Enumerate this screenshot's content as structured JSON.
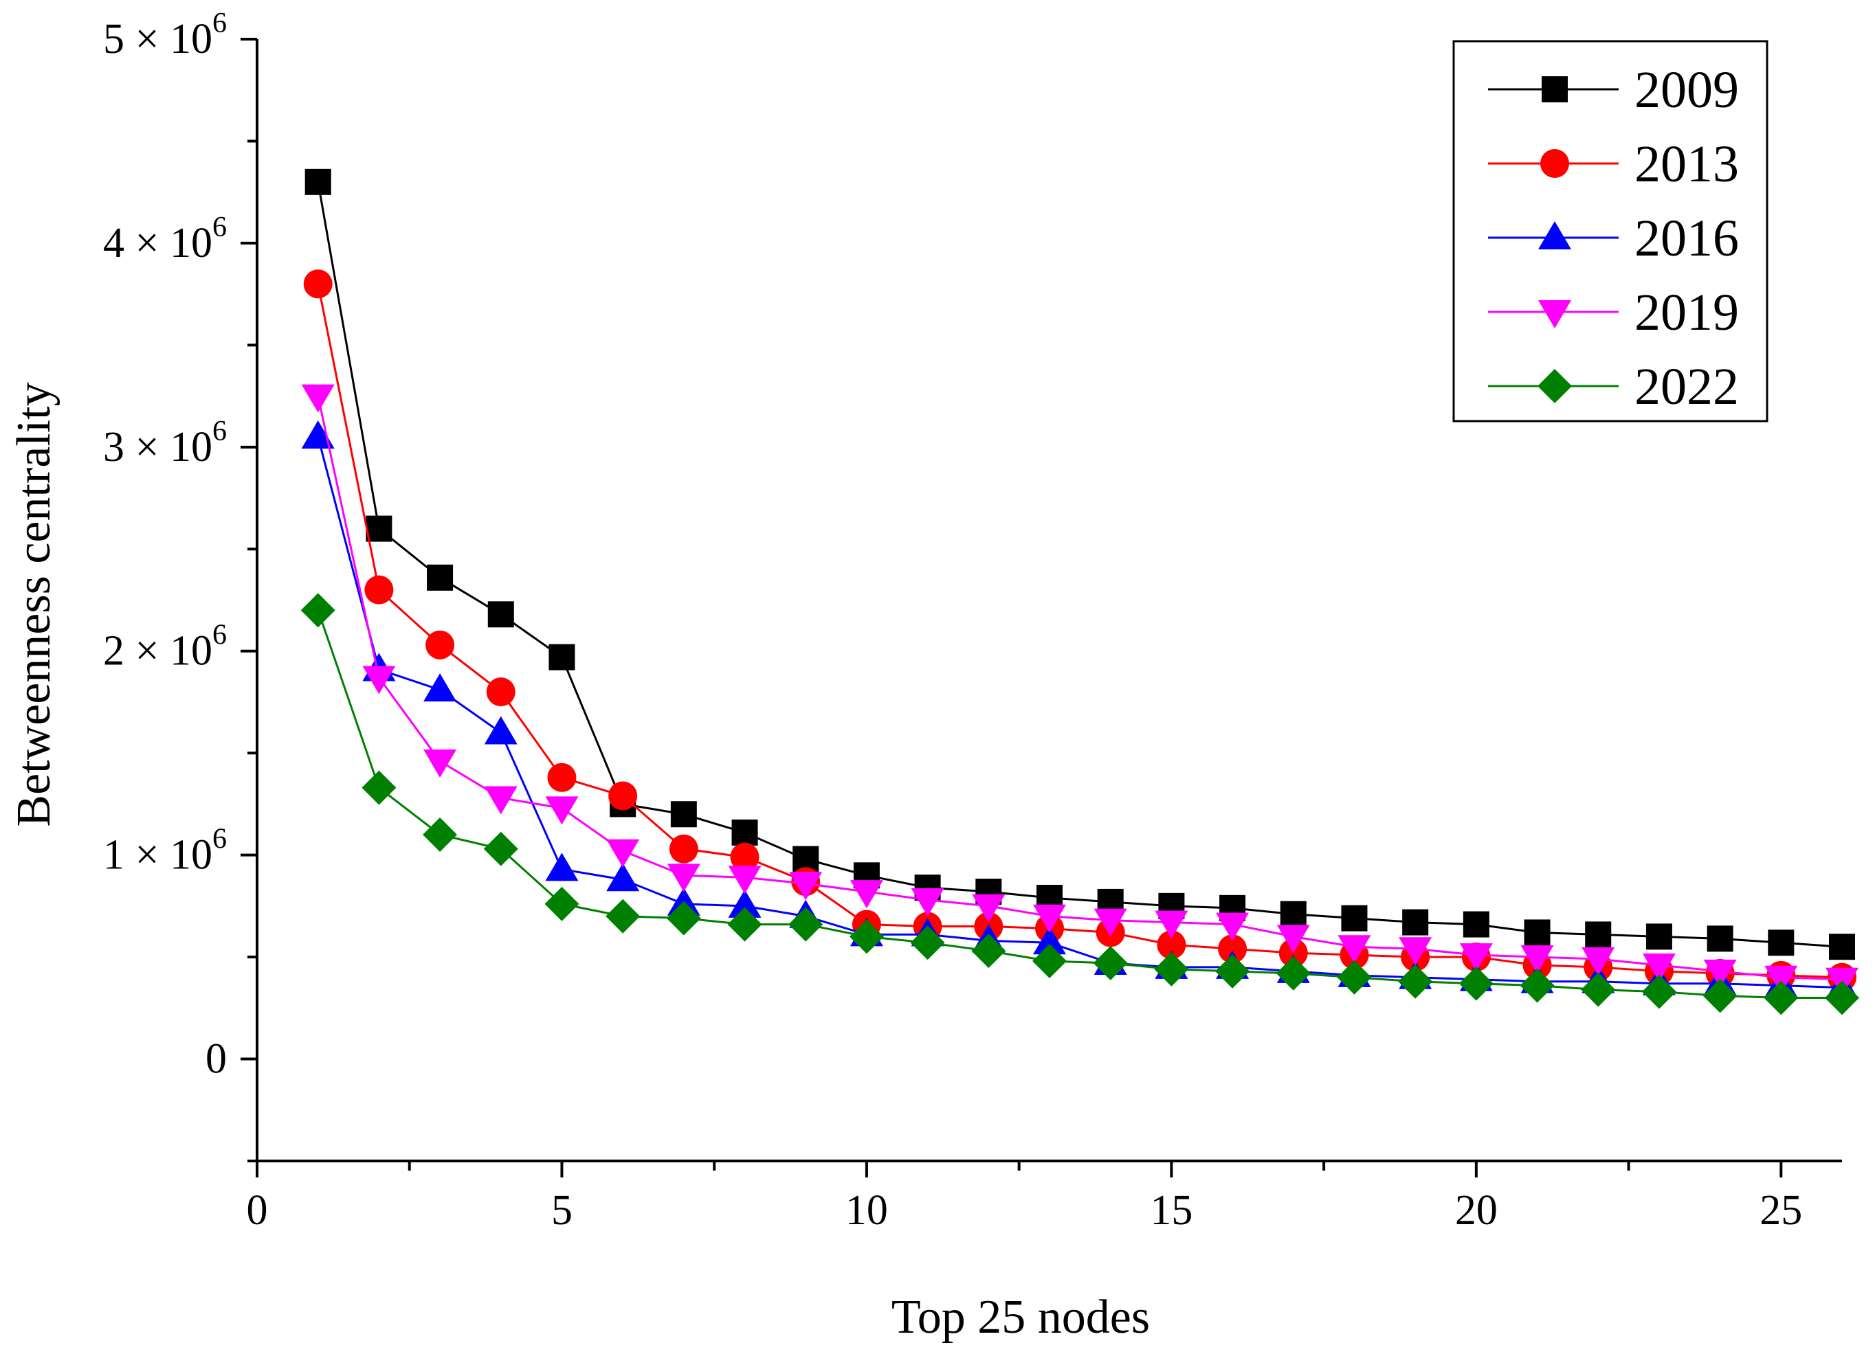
{
  "chart_data": {
    "type": "line",
    "title": "",
    "xlabel": "Top 25 nodes",
    "ylabel": "Betweenness centrality",
    "xlim": [
      0,
      26
    ],
    "ylim": [
      -500000,
      5000000
    ],
    "x_ticks": [
      0,
      5,
      10,
      15,
      20,
      25
    ],
    "x_tick_labels": [
      "0",
      "5",
      "10",
      "15",
      "20",
      "25"
    ],
    "y_ticks": [
      0,
      1000000,
      2000000,
      3000000,
      4000000,
      5000000
    ],
    "y_tick_labels": [
      {
        "base": "0",
        "exp": ""
      },
      {
        "base": "1 × 10",
        "exp": "6"
      },
      {
        "base": "2 × 10",
        "exp": "6"
      },
      {
        "base": "3 × 10",
        "exp": "6"
      },
      {
        "base": "4 × 10",
        "exp": "6"
      },
      {
        "base": "5 × 10",
        "exp": "6"
      }
    ],
    "grid": false,
    "legend_position": "top-right",
    "x": [
      1,
      2,
      3,
      4,
      5,
      6,
      7,
      8,
      9,
      10,
      11,
      12,
      13,
      14,
      15,
      16,
      17,
      18,
      19,
      20,
      21,
      22,
      23,
      24,
      25,
      26
    ],
    "series": [
      {
        "name": "2009",
        "color": "#000000",
        "marker": "square",
        "values": [
          4300000,
          2600000,
          2360000,
          2180000,
          1970000,
          1250000,
          1200000,
          1110000,
          980000,
          900000,
          840000,
          820000,
          790000,
          770000,
          750000,
          740000,
          710000,
          690000,
          670000,
          660000,
          620000,
          610000,
          600000,
          590000,
          570000,
          550000
        ]
      },
      {
        "name": "2013",
        "color": "#ff0000",
        "marker": "circle",
        "values": [
          3800000,
          2300000,
          2030000,
          1800000,
          1380000,
          1290000,
          1030000,
          990000,
          870000,
          660000,
          650000,
          650000,
          640000,
          620000,
          560000,
          540000,
          520000,
          510000,
          500000,
          500000,
          460000,
          450000,
          430000,
          420000,
          410000,
          400000
        ]
      },
      {
        "name": "2016",
        "color": "#0000ff",
        "marker": "triangle-up",
        "values": [
          3050000,
          1910000,
          1810000,
          1600000,
          930000,
          880000,
          760000,
          750000,
          700000,
          610000,
          610000,
          580000,
          570000,
          470000,
          450000,
          450000,
          430000,
          410000,
          400000,
          390000,
          380000,
          380000,
          370000,
          370000,
          360000,
          350000
        ]
      },
      {
        "name": "2019",
        "color": "#ff00ff",
        "marker": "triangle-down",
        "values": [
          3250000,
          1870000,
          1460000,
          1280000,
          1230000,
          1020000,
          900000,
          890000,
          860000,
          820000,
          780000,
          750000,
          700000,
          680000,
          670000,
          660000,
          600000,
          550000,
          540000,
          510000,
          500000,
          490000,
          460000,
          430000,
          400000,
          390000
        ]
      },
      {
        "name": "2022",
        "color": "#008000",
        "marker": "diamond",
        "values": [
          2200000,
          1330000,
          1100000,
          1030000,
          760000,
          700000,
          690000,
          660000,
          660000,
          600000,
          570000,
          530000,
          480000,
          470000,
          440000,
          430000,
          420000,
          400000,
          380000,
          370000,
          360000,
          340000,
          330000,
          310000,
          300000,
          300000
        ]
      }
    ]
  }
}
